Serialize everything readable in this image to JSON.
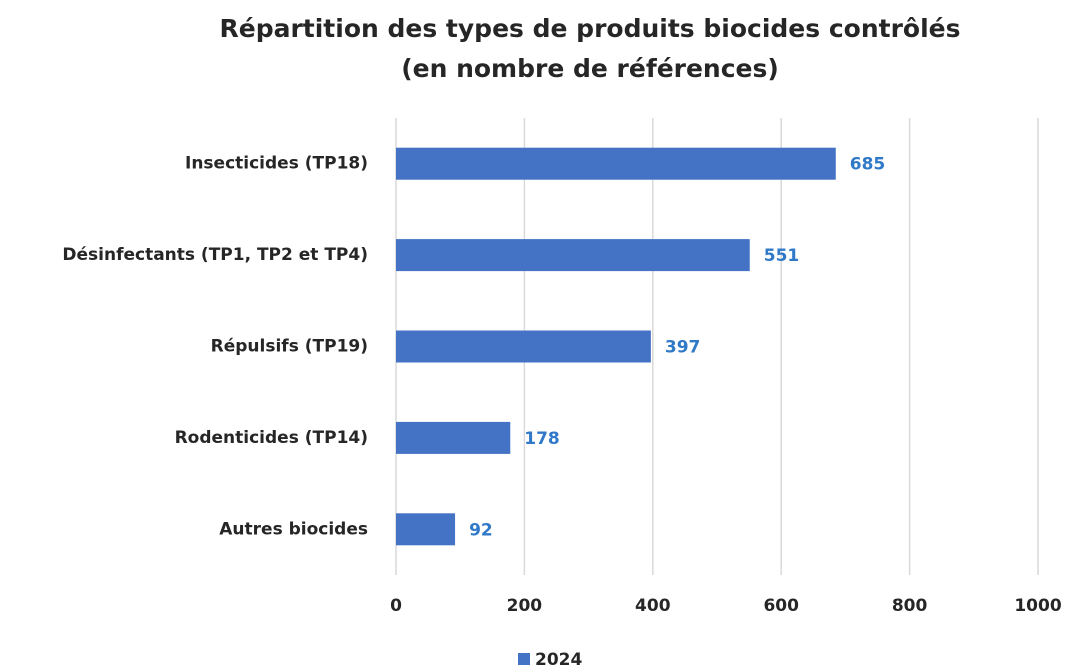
{
  "chart_data": {
    "type": "bar",
    "orientation": "horizontal",
    "title": "Répartition des types de produits biocides contrôlés",
    "subtitle": "(en nombre de références)",
    "categories": [
      "Insecticides (TP18)",
      "Désinfectants (TP1, TP2 et TP4)",
      "Répulsifs (TP19)",
      "Rodenticides (TP14)",
      "Autres biocides"
    ],
    "series": [
      {
        "name": "2024",
        "color": "#4472c4",
        "values": [
          685,
          551,
          397,
          178,
          92
        ]
      }
    ],
    "value_label_color": "#2f79c8",
    "xlim": [
      0,
      1000
    ],
    "xticks": [
      0,
      200,
      400,
      600,
      800,
      1000
    ],
    "grid": true,
    "legend": "bottom"
  }
}
